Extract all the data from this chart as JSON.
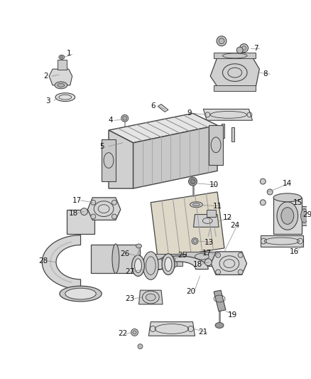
{
  "bg_color": "#ffffff",
  "fig_width": 4.38,
  "fig_height": 5.33,
  "dpi": 100,
  "line_color": "#444444",
  "label_fontsize": 7.5,
  "label_color": "#111111"
}
